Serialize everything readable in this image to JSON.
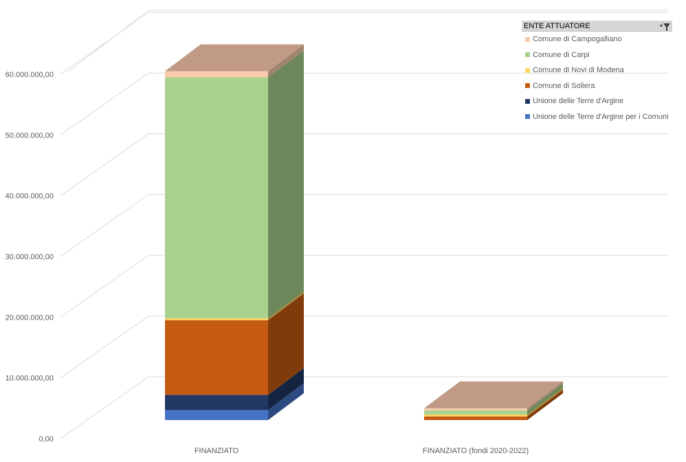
{
  "chart_data": {
    "type": "bar",
    "stacked": true,
    "style": "3d-column",
    "categories": [
      "FINANZIATO",
      "FINANZIATO (fondi 2020-2022)"
    ],
    "ylim": [
      0,
      60000000
    ],
    "yticks": [
      "0,00",
      "10.000.000,00",
      "20.000.000,00",
      "30.000.000,00",
      "40.000.000,00",
      "50.000.000,00",
      "60.000.000,00"
    ],
    "grid": true,
    "legend_position": "top-right",
    "series": [
      {
        "name": "Unione delle Terre d'Argine per i Comuni",
        "color": "#4472c4",
        "values": [
          1650000,
          0
        ]
      },
      {
        "name": "Unione delle Terre d'Argine",
        "color": "#203864",
        "values": [
          2500000,
          0
        ]
      },
      {
        "name": "Comune di Soliera",
        "color": "#c55a11",
        "values": [
          12300000,
          600000
        ]
      },
      {
        "name": "Comune di Novi di Modena",
        "color": "#ffd966",
        "values": [
          300000,
          300000
        ]
      },
      {
        "name": "Comune di Carpi",
        "color": "#a9d18e",
        "values": [
          39700000,
          700000
        ]
      },
      {
        "name": "Comune di Campogalliano",
        "color": "#f8cbad",
        "values": [
          1000000,
          300000
        ]
      }
    ]
  },
  "legend": {
    "title": "ENTE ATTUATORE",
    "items": [
      {
        "label": "Comune di Campogalliano",
        "color": "#f8cbad"
      },
      {
        "label": "Comune di Carpi",
        "color": "#a9d18e"
      },
      {
        "label": "Comune di Novi di Modena",
        "color": "#ffd966"
      },
      {
        "label": "Comune di Soliera",
        "color": "#c55a11"
      },
      {
        "label": "Unione delle Terre d'Argine",
        "color": "#203864"
      },
      {
        "label": "Unione delle Terre d'Argine per i Comuni",
        "color": "#4472c4"
      }
    ]
  }
}
